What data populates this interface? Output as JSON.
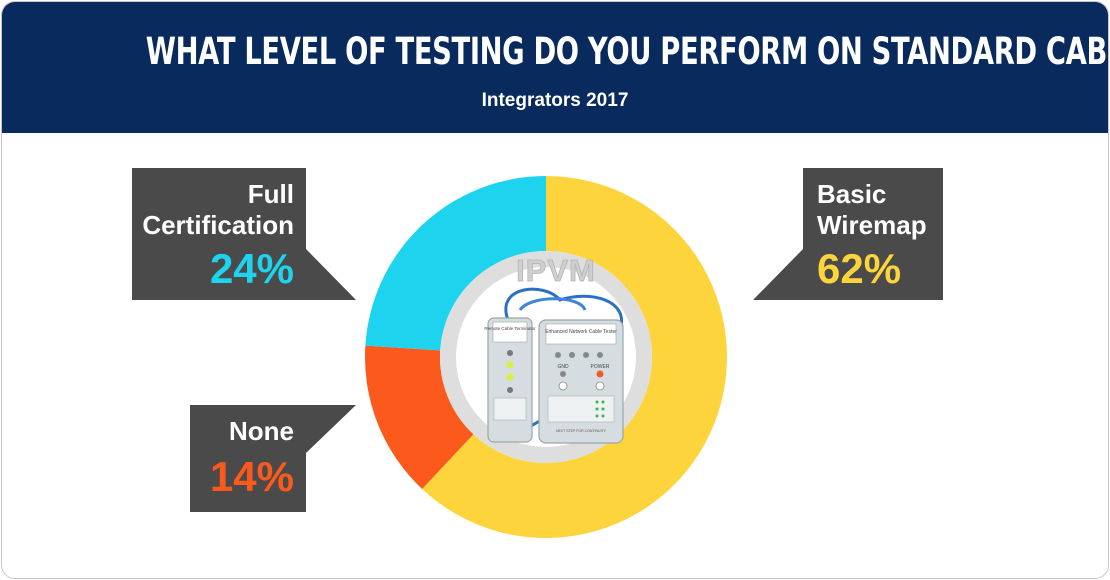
{
  "header": {
    "title": "WHAT LEVEL OF TESTING DO YOU PERFORM ON STANDARD CABLE INSTALLS?",
    "subtitle": "Integrators 2017"
  },
  "logo_text": "IPVM",
  "tester_image": {
    "remote_unit_label": "Remote Cable Terminator",
    "main_unit_label": "Enhanced Network Cable Tester",
    "gnd_label": "GND",
    "power_label": "POWER",
    "bottom_note": "NEXT STEP FOR CONTINUITY"
  },
  "chart_data": {
    "type": "pie",
    "donut": true,
    "categories": [
      "Basic Wiremap",
      "None",
      "Full Certification"
    ],
    "values": [
      62,
      14,
      24
    ],
    "value_labels": [
      "62%",
      "14%",
      "24%"
    ],
    "label_lines": [
      [
        "Basic",
        "Wiremap"
      ],
      [
        "None"
      ],
      [
        "Full",
        "Certification"
      ]
    ],
    "colors": [
      "#fdd43b",
      "#fc5a1d",
      "#1dd3ee"
    ]
  },
  "colors": {
    "header_bg": "#082a5c",
    "callout_bg": "#4a4a4a",
    "ring_inner": "#dcdcdc"
  }
}
